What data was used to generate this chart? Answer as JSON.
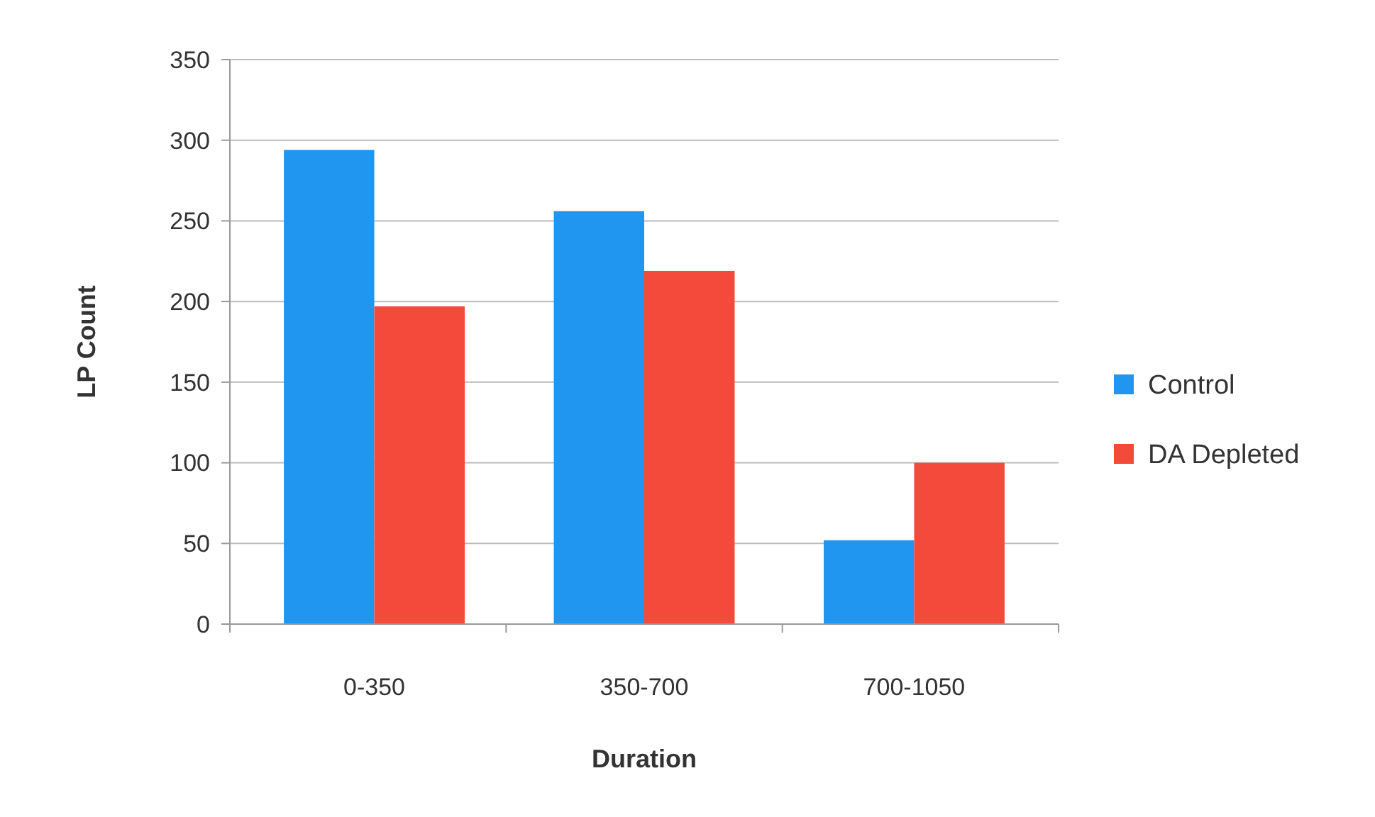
{
  "chart_data": {
    "type": "bar",
    "xlabel": "Duration",
    "ylabel": "LP Count",
    "categories": [
      "0-350",
      "350-700",
      "700-1050"
    ],
    "series": [
      {
        "name": "Control",
        "color": "#2196f0",
        "values": [
          294,
          256,
          52
        ]
      },
      {
        "name": "DA Depleted",
        "color": "#f44a3c",
        "values": [
          197,
          219,
          100
        ]
      }
    ],
    "ylim": [
      0,
      350
    ],
    "yticks": [
      0,
      50,
      100,
      150,
      200,
      250,
      300,
      350
    ],
    "grid": "y",
    "legend": "right"
  }
}
